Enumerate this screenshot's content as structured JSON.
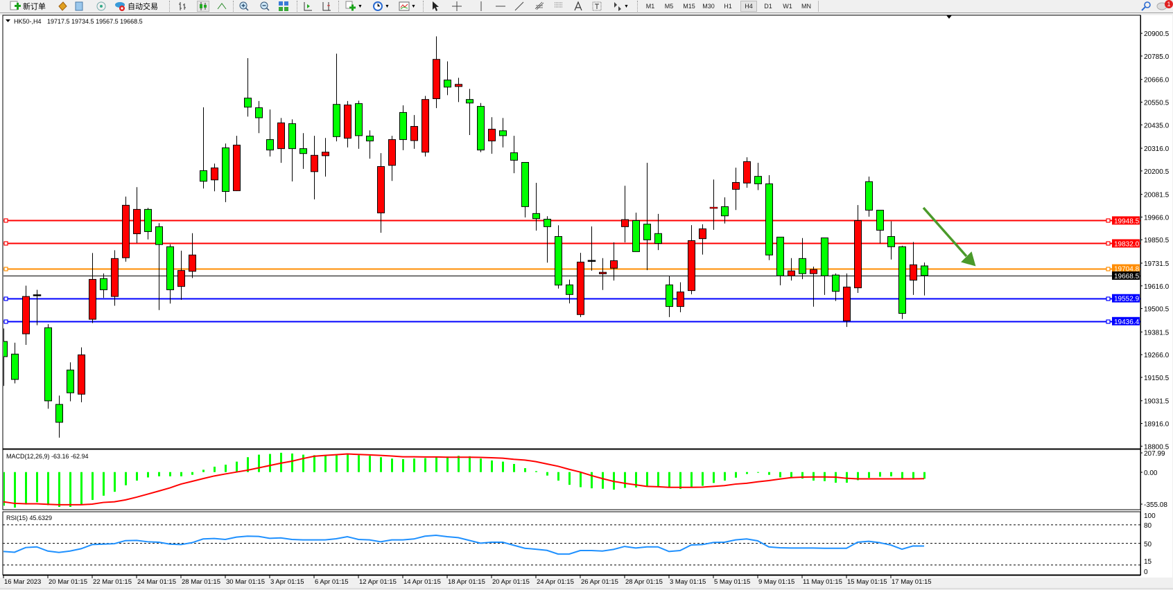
{
  "toolbar": {
    "new_order": "新订单",
    "auto_trading": "自动交易",
    "timeframes": [
      "M1",
      "M5",
      "M15",
      "M30",
      "H1",
      "H4",
      "D1",
      "W1",
      "MN"
    ],
    "selected_timeframe": "H4",
    "notification_count": "1"
  },
  "header": {
    "symbol": "HK50-,H4",
    "ohlc": "19717.5 19734.5 19567.5 19668.5"
  },
  "colors": {
    "bull_candle": "#ff0000",
    "bear_candle": "#00ff00",
    "resistance": "#ff0000",
    "pivot": "#ff8c00",
    "support": "#0000ff",
    "macd_histogram": "#00ff00",
    "macd_signal": "#ff0000",
    "rsi_line": "#1e90ff",
    "arrow": "#4a9a2a"
  },
  "price_axis": {
    "ticks": [
      "20900.5",
      "20785.0",
      "20666.0",
      "20550.5",
      "20435.0",
      "20316.0",
      "20200.5",
      "20081.5",
      "19966.0",
      "19850.5",
      "19731.5",
      "19616.0",
      "19500.5",
      "19381.5",
      "19266.0",
      "19150.5",
      "19031.5",
      "18916.0",
      "18800.5"
    ],
    "range": [
      18800.5,
      20900.5
    ]
  },
  "levels": [
    {
      "price": 19948.5,
      "label": "19948.5",
      "color": "#ff0000"
    },
    {
      "price": 19832.0,
      "label": "19832.0",
      "color": "#ff0000"
    },
    {
      "price": 19704.8,
      "label": "19704.8",
      "color": "#ff8c00"
    },
    {
      "price": 19552.9,
      "label": "19552.9",
      "color": "#0000ff"
    },
    {
      "price": 19436.4,
      "label": "19436.4",
      "color": "#0000ff"
    }
  ],
  "current_price": {
    "price": 19668.5,
    "label": "19668.5"
  },
  "annotation": {
    "type": "arrow",
    "direction": "down-right",
    "color": "#4a9a2a"
  },
  "macd": {
    "label": "MACD(12,26,9) -63.16 -62.94",
    "axis": [
      "207.99",
      "0.00",
      "-355.08"
    ],
    "range": [
      -355.08,
      207.99
    ]
  },
  "rsi": {
    "label": "RSI(15) 45.6329",
    "axis": [
      "100",
      "80",
      "50",
      "15",
      "0"
    ],
    "levels": [
      80,
      50,
      15
    ]
  },
  "time_axis": [
    {
      "bar": 0,
      "label": "16 Mar 2023"
    },
    {
      "bar": 4,
      "label": "20 Mar 01:15"
    },
    {
      "bar": 8,
      "label": "22 Mar 01:15"
    },
    {
      "bar": 12,
      "label": "24 Mar 01:15"
    },
    {
      "bar": 16,
      "label": "28 Mar 01:15"
    },
    {
      "bar": 20,
      "label": "30 Mar 01:15"
    },
    {
      "bar": 24,
      "label": "3 Apr 01:15"
    },
    {
      "bar": 28,
      "label": "6 Apr 01:15"
    },
    {
      "bar": 32,
      "label": "12 Apr 01:15"
    },
    {
      "bar": 36,
      "label": "14 Apr 01:15"
    },
    {
      "bar": 40,
      "label": "18 Apr 01:15"
    },
    {
      "bar": 44,
      "label": "20 Apr 01:15"
    },
    {
      "bar": 48,
      "label": "24 Apr 01:15"
    },
    {
      "bar": 52,
      "label": "26 Apr 01:15"
    },
    {
      "bar": 56,
      "label": "28 Apr 01:15"
    },
    {
      "bar": 60,
      "label": "3 May 01:15"
    },
    {
      "bar": 64,
      "label": "5 May 01:15"
    },
    {
      "bar": 68,
      "label": "9 May 01:15"
    },
    {
      "bar": 72,
      "label": "11 May 01:15"
    },
    {
      "bar": 76,
      "label": "15 May 01:15"
    },
    {
      "bar": 80,
      "label": "17 May 01:15"
    }
  ],
  "chart_data": {
    "type": "candlestick",
    "ohlc_order": [
      "open",
      "high",
      "low",
      "close"
    ],
    "candles": [
      [
        19333,
        19399,
        19107,
        19256
      ],
      [
        19269,
        19327,
        19120,
        19140
      ],
      [
        19372,
        19617,
        19316,
        19562
      ],
      [
        19568,
        19596,
        19416,
        19568
      ],
      [
        19403,
        19421,
        18991,
        19031
      ],
      [
        19013,
        19058,
        18844,
        18922
      ],
      [
        19188,
        19227,
        19029,
        19072
      ],
      [
        19065,
        19303,
        19024,
        19265
      ],
      [
        19446,
        19783,
        19427,
        19649
      ],
      [
        19653,
        19679,
        19555,
        19596
      ],
      [
        19562,
        19797,
        19515,
        19755
      ],
      [
        19759,
        20070,
        19739,
        20026
      ],
      [
        19881,
        20118,
        19834,
        20005
      ],
      [
        20005,
        20013,
        19852,
        19892
      ],
      [
        19917,
        19935,
        19493,
        19826
      ],
      [
        19815,
        19827,
        19526,
        19596
      ],
      [
        19613,
        19795,
        19545,
        19694
      ],
      [
        19690,
        19884,
        19656,
        19773
      ],
      [
        20202,
        20524,
        20111,
        20148
      ],
      [
        20155,
        20238,
        20097,
        20216
      ],
      [
        20318,
        20340,
        20042,
        20096
      ],
      [
        20100,
        20379,
        20098,
        20332
      ],
      [
        20571,
        20774,
        20477,
        20525
      ],
      [
        20522,
        20556,
        20393,
        20471
      ],
      [
        20360,
        20513,
        20274,
        20307
      ],
      [
        20314,
        20470,
        20242,
        20445
      ],
      [
        20441,
        20463,
        20147,
        20314
      ],
      [
        20314,
        20393,
        20211,
        20289
      ],
      [
        20197,
        20379,
        20056,
        20280
      ],
      [
        20278,
        20368,
        20172,
        20296
      ],
      [
        20539,
        20797,
        20351,
        20375
      ],
      [
        20367,
        20556,
        20320,
        20536
      ],
      [
        20543,
        20558,
        20313,
        20380
      ],
      [
        20378,
        20407,
        20263,
        20353
      ],
      [
        19987,
        20291,
        19886,
        20223
      ],
      [
        20229,
        20379,
        20150,
        20360
      ],
      [
        20498,
        20534,
        20306,
        20360
      ],
      [
        20355,
        20485,
        20313,
        20427
      ],
      [
        20296,
        20582,
        20274,
        20564
      ],
      [
        20568,
        20885,
        20520,
        20768
      ],
      [
        20663,
        20758,
        20586,
        20627
      ],
      [
        20630,
        20674,
        20551,
        20641
      ],
      [
        20564,
        20618,
        20383,
        20546
      ],
      [
        20529,
        20546,
        20296,
        20307
      ],
      [
        20353,
        20474,
        20288,
        20413
      ],
      [
        20405,
        20470,
        20320,
        20380
      ],
      [
        20293,
        20379,
        20189,
        20255
      ],
      [
        20244,
        20244,
        19964,
        20019
      ],
      [
        19984,
        20140,
        19897,
        19958
      ],
      [
        19955,
        19970,
        19734,
        19917
      ],
      [
        19867,
        19924,
        19602,
        19620
      ],
      [
        19621,
        19648,
        19527,
        19572
      ],
      [
        19470,
        19784,
        19457,
        19737
      ],
      [
        19743,
        19918,
        19693,
        19743
      ],
      [
        19677,
        19757,
        19595,
        19685
      ],
      [
        19706,
        19837,
        19643,
        19744
      ],
      [
        19917,
        20125,
        19837,
        19953
      ],
      [
        19948,
        19988,
        19790,
        19790
      ],
      [
        19930,
        20242,
        19696,
        19850
      ],
      [
        19882,
        19982,
        19798,
        19832
      ],
      [
        19621,
        19665,
        19457,
        19511
      ],
      [
        19511,
        19634,
        19482,
        19585
      ],
      [
        19592,
        19925,
        19573,
        19846
      ],
      [
        19856,
        19929,
        19775,
        19906
      ],
      [
        20008,
        20157,
        19901,
        20013
      ],
      [
        20019,
        20066,
        19933,
        19972
      ],
      [
        20107,
        20217,
        20002,
        20142
      ],
      [
        20139,
        20270,
        20115,
        20248
      ],
      [
        20173,
        20242,
        20103,
        20135
      ],
      [
        20135,
        20179,
        19747,
        19773
      ],
      [
        19864,
        19864,
        19619,
        19667
      ],
      [
        19667,
        19757,
        19643,
        19692
      ],
      [
        19755,
        19859,
        19650,
        19678
      ],
      [
        19678,
        19714,
        19510,
        19699
      ],
      [
        19860,
        19860,
        19570,
        19667
      ],
      [
        19671,
        19679,
        19539,
        19588
      ],
      [
        19438,
        19679,
        19407,
        19610
      ],
      [
        19606,
        20027,
        19580,
        19948
      ],
      [
        20146,
        20172,
        19968,
        20001
      ],
      [
        20001,
        20001,
        19832,
        19899
      ],
      [
        19867,
        19944,
        19750,
        19815
      ],
      [
        19815,
        19820,
        19447,
        19476
      ],
      [
        19645,
        19839,
        19570,
        19723
      ],
      [
        19717.5,
        19734.5,
        19567.5,
        19668.5
      ]
    ],
    "macd_histogram": [
      -319,
      -337,
      -308,
      -286,
      -314,
      -330,
      -330,
      -304,
      -264,
      -224,
      -187,
      -125,
      -81,
      -51,
      -40,
      -40,
      -40,
      -26,
      22,
      51,
      70,
      99,
      141,
      165,
      172,
      183,
      176,
      165,
      160,
      154,
      158,
      165,
      160,
      154,
      141,
      128,
      123,
      128,
      132,
      141,
      147,
      154,
      150,
      128,
      110,
      99,
      77,
      37,
      9,
      -33,
      -81,
      -121,
      -143,
      -154,
      -158,
      -167,
      -150,
      -146,
      -138,
      -138,
      -146,
      -160,
      -146,
      -130,
      -103,
      -81,
      -53,
      -18,
      -4,
      -26,
      -50,
      -50,
      -62,
      -81,
      -86,
      -101,
      -101,
      -77,
      -55,
      -44,
      -40,
      -62,
      -62,
      -63.16
    ],
    "macd_signal": [
      -282,
      -297,
      -301,
      -301,
      -306,
      -310,
      -310,
      -310,
      -304,
      -288,
      -282,
      -264,
      -238,
      -209,
      -180,
      -150,
      -114,
      -88,
      -62,
      -37,
      -18,
      0,
      18,
      40,
      62,
      84,
      103,
      128,
      150,
      158,
      165,
      172,
      167,
      163,
      158,
      152,
      145,
      145,
      143,
      143,
      141,
      141,
      141,
      139,
      136,
      132,
      121,
      114,
      99,
      77,
      55,
      26,
      0,
      -33,
      -62,
      -88,
      -106,
      -121,
      -136,
      -139,
      -145,
      -145,
      -145,
      -143,
      -136,
      -128,
      -114,
      -106,
      -92,
      -81,
      -66,
      -53,
      -48,
      -46,
      -46,
      -48,
      -59,
      -64,
      -64,
      -64,
      -64,
      -64,
      -64,
      -62.94
    ],
    "rsi": [
      36.8,
      35.6,
      43.2,
      44.3,
      37.5,
      35.3,
      37.5,
      41.3,
      48.0,
      48.8,
      49.5,
      54.4,
      54.8,
      52.6,
      51.8,
      48.8,
      48.0,
      51.1,
      57.1,
      57.8,
      56.3,
      60.1,
      61.6,
      61.2,
      58.2,
      58.9,
      56.3,
      55.6,
      55.6,
      55.6,
      57.4,
      60.8,
      56.3,
      55.6,
      52.6,
      55.6,
      55.6,
      57.1,
      61.6,
      63.1,
      60.8,
      59.3,
      54.8,
      50.3,
      51.8,
      51.8,
      46.9,
      42.0,
      40.5,
      38.6,
      32.6,
      32.6,
      38.3,
      38.3,
      37.5,
      40.2,
      45.0,
      42.4,
      44.3,
      44.3,
      36.8,
      38.3,
      47.3,
      48.0,
      51.4,
      51.8,
      55.6,
      57.1,
      54.1,
      44.3,
      42.8,
      42.4,
      42.4,
      42.4,
      42.0,
      42.0,
      42.0,
      51.8,
      53.3,
      51.1,
      47.3,
      40.5,
      45.8,
      45.6329
    ]
  }
}
